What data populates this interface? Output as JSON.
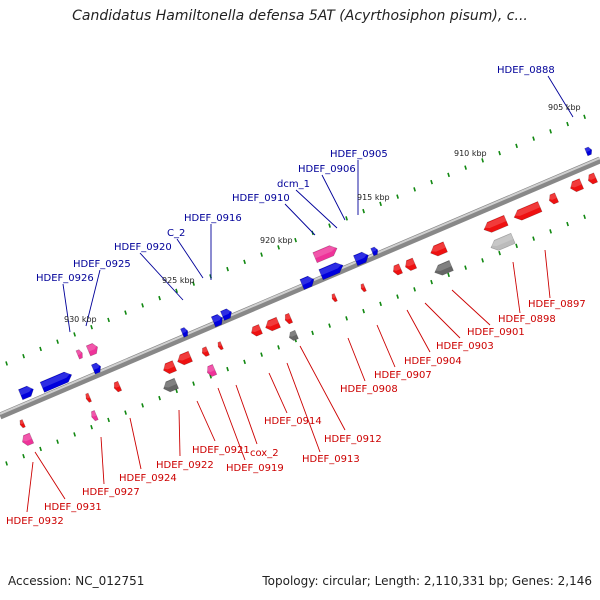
{
  "title": "Candidatus Hamiltonella defensa 5AT (Acyrthosiphon pisum), c...",
  "footer": {
    "accession": "Accession: NC_012751",
    "topology": "Topology: circular; Length: 2,110,331 bp; Genes: 2,146"
  },
  "colors": {
    "forward_gene": "#0000dd",
    "reverse_gene": "#ee1111",
    "rna_gene": "#ee3399",
    "pseudo_gene": "#666666",
    "grey_gene": "#bbbbbb",
    "backbone": "#888888",
    "tick": "#118811",
    "label_forward": "#000099",
    "label_reverse": "#cc0000"
  },
  "scale_labels": [
    "905 kbp",
    "910 kbp",
    "915 kbp",
    "920 kbp",
    "925 kbp",
    "930 kbp"
  ],
  "top_labels": [
    "HDEF_0888",
    "HDEF_0905",
    "HDEF_0906",
    "dcm_1",
    "HDEF_0910",
    "HDEF_0916",
    "C_2",
    "HDEF_0920",
    "HDEF_0925",
    "HDEF_0926"
  ],
  "bottom_labels": [
    "HDEF_0897",
    "HDEF_0898",
    "HDEF_0901",
    "HDEF_0903",
    "HDEF_0904",
    "HDEF_0907",
    "HDEF_0908",
    "HDEF_0912",
    "HDEF_0913",
    "HDEF_0914",
    "cox_2",
    "HDEF_0919",
    "HDEF_0921",
    "HDEF_0922",
    "HDEF_0924",
    "HDEF_0927",
    "HDEF_0931",
    "HDEF_0932"
  ]
}
